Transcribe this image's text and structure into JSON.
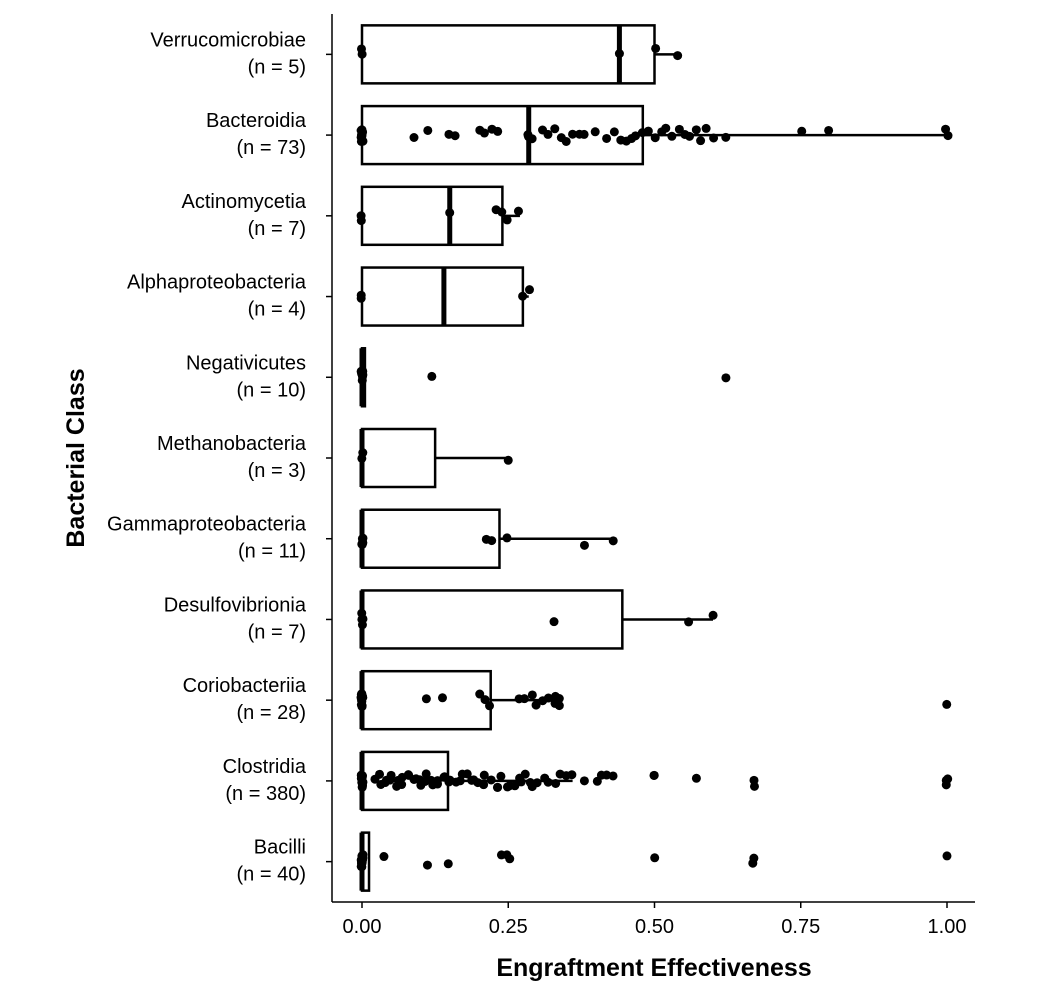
{
  "chart_data": {
    "type": "boxplot",
    "orientation": "horizontal",
    "xlabel": "Engraftment Effectiveness",
    "ylabel": "Bacterial Class",
    "xlim": [
      -0.05,
      1.05
    ],
    "xticks": [
      0,
      0.25,
      0.5,
      0.75,
      1
    ],
    "xtick_labels": [
      "0.00",
      "0.25",
      "0.50",
      "0.75",
      "1.00"
    ],
    "grid": false,
    "categories": [
      {
        "name": "Verrucomicrobiae",
        "n_label": "(n = 5)",
        "q1": 0,
        "median": 0.44,
        "q3": 0.5,
        "whisker_low": 0,
        "whisker_high": 0.54,
        "points": [
          0,
          0,
          0.44,
          0.5,
          0.54
        ]
      },
      {
        "name": "Bacteroidia",
        "n_label": "(n = 73)",
        "q1": 0,
        "median": 0.285,
        "q3": 0.48,
        "whisker_low": 0,
        "whisker_high": 1.0,
        "points": [
          0,
          0,
          0,
          0,
          0,
          0,
          0,
          0,
          0,
          0,
          0.09,
          0.11,
          0.15,
          0.16,
          0.2,
          0.21,
          0.22,
          0.23,
          0.285,
          0.285,
          0.29,
          0.31,
          0.32,
          0.33,
          0.34,
          0.35,
          0.36,
          0.37,
          0.38,
          0.4,
          0.42,
          0.43,
          0.44,
          0.45,
          0.46,
          0.47,
          0.48,
          0.49,
          0.5,
          0.51,
          0.52,
          0.53,
          0.54,
          0.55,
          0.56,
          0.57,
          0.58,
          0.59,
          0.6,
          0.62,
          0.75,
          0.8,
          1.0,
          1.0
        ]
      },
      {
        "name": "Actinomycetia",
        "n_label": "(n = 7)",
        "q1": 0,
        "median": 0.15,
        "q3": 0.24,
        "whisker_low": 0,
        "whisker_high": 0.27,
        "points": [
          0,
          0,
          0.15,
          0.23,
          0.24,
          0.25,
          0.27
        ]
      },
      {
        "name": "Alphaproteobacteria",
        "n_label": "(n = 4)",
        "q1": 0,
        "median": 0.14,
        "q3": 0.275,
        "whisker_low": 0,
        "whisker_high": 0.285,
        "points": [
          0,
          0,
          0.275,
          0.285
        ]
      },
      {
        "name": "Negativicutes",
        "n_label": "(n = 10)",
        "q1": 0,
        "median": 0,
        "q3": 0.005,
        "whisker_low": 0,
        "whisker_high": 0.005,
        "points": [
          0,
          0,
          0,
          0,
          0,
          0,
          0,
          0,
          0.12,
          0.62
        ]
      },
      {
        "name": "Methanobacteria",
        "n_label": "(n = 3)",
        "q1": 0,
        "median": 0,
        "q3": 0.125,
        "whisker_low": 0,
        "whisker_high": 0.25,
        "points": [
          0,
          0,
          0.25
        ]
      },
      {
        "name": "Gammaproteobacteria",
        "n_label": "(n = 11)",
        "q1": 0,
        "median": 0,
        "q3": 0.235,
        "whisker_low": 0,
        "whisker_high": 0.43,
        "points": [
          0,
          0,
          0,
          0,
          0,
          0.21,
          0.22,
          0.25,
          0.38,
          0.43,
          0
        ]
      },
      {
        "name": "Desulfovibrionia",
        "n_label": "(n = 7)",
        "q1": 0,
        "median": 0,
        "q3": 0.445,
        "whisker_low": 0,
        "whisker_high": 0.6,
        "points": [
          0,
          0,
          0,
          0,
          0.33,
          0.56,
          0.6
        ]
      },
      {
        "name": "Coriobacteriia",
        "n_label": "(n = 28)",
        "q1": 0,
        "median": 0,
        "q3": 0.22,
        "whisker_low": 0,
        "whisker_high": 0.335,
        "points": [
          0,
          0,
          0,
          0,
          0,
          0,
          0,
          0,
          0,
          0,
          0,
          0,
          0.11,
          0.14,
          0.2,
          0.21,
          0.22,
          0.27,
          0.28,
          0.29,
          0.3,
          0.31,
          0.32,
          0.33,
          0.33,
          0.335,
          0.335,
          1.0
        ]
      },
      {
        "name": "Clostridia",
        "n_label": "(n = 380)",
        "q1": 0,
        "median": 0,
        "q3": 0.147,
        "whisker_low": 0,
        "whisker_high": 0.36,
        "points": [
          0,
          0,
          0,
          0,
          0,
          0,
          0,
          0,
          0,
          0,
          0,
          0,
          0,
          0,
          0,
          0,
          0,
          0.02,
          0.03,
          0.04,
          0.05,
          0.06,
          0.07,
          0.08,
          0.09,
          0.1,
          0.11,
          0.12,
          0.13,
          0.14,
          0.15,
          0.16,
          0.17,
          0.18,
          0.19,
          0.2,
          0.21,
          0.22,
          0.23,
          0.24,
          0.25,
          0.26,
          0.27,
          0.28,
          0.29,
          0.3,
          0.31,
          0.32,
          0.33,
          0.34,
          0.35,
          0.36,
          0.38,
          0.4,
          0.41,
          0.42,
          0.43,
          0.5,
          0.5,
          0.57,
          0.67,
          0.67,
          1.0,
          1.0,
          1.0,
          0.04,
          0.06,
          0.08,
          0.1,
          0.12,
          0.14,
          0.05,
          0.07,
          0.09,
          0.11,
          0.13,
          0.03,
          0.15,
          0.17,
          0.19,
          0.21,
          0.23,
          0.25,
          0.27,
          0.29
        ]
      },
      {
        "name": "Bacilli",
        "n_label": "(n = 40)",
        "q1": 0,
        "median": 0,
        "q3": 0.012,
        "whisker_low": 0,
        "whisker_high": 0.012,
        "points": [
          0,
          0,
          0,
          0,
          0,
          0,
          0,
          0,
          0,
          0,
          0,
          0,
          0,
          0,
          0.04,
          0.11,
          0.15,
          0.24,
          0.25,
          0.25,
          0.5,
          0.67,
          0.67,
          1.0
        ]
      }
    ]
  }
}
